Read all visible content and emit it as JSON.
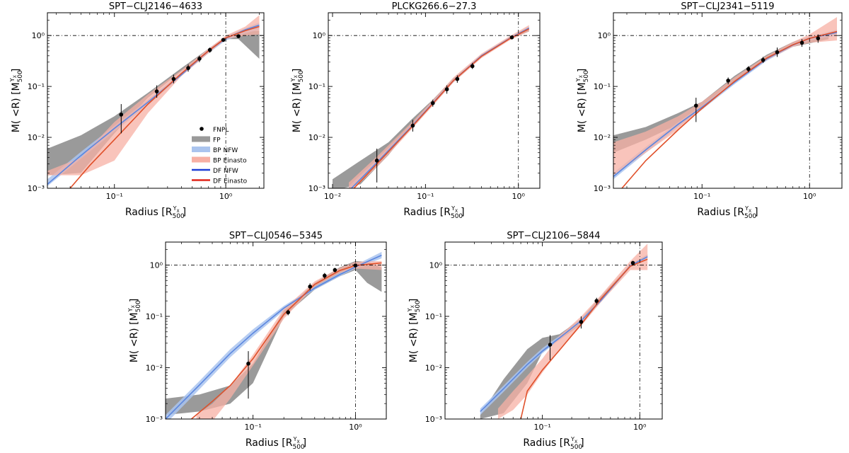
{
  "figure": {
    "ylabel_text": "M( <R)",
    "ylabel_unit": "[M",
    "xlabel_text": "Radius",
    "xlabel_unit": "[R",
    "unit_sub": "500",
    "unit_sup": "Y",
    "unit_sup_sub": "X",
    "legend": [
      {
        "label": "FNPL",
        "kind": "point",
        "color": "#000000"
      },
      {
        "label": "FP",
        "kind": "band",
        "color": "#9a9a9a"
      },
      {
        "label": "BP NFW",
        "kind": "band",
        "color": "#aac4ee"
      },
      {
        "label": "BP Einasto",
        "kind": "band",
        "color": "#f7b0a4"
      },
      {
        "label": "DF NFW",
        "kind": "line",
        "color": "#1f3fd6"
      },
      {
        "label": "DF Einasto",
        "kind": "line",
        "color": "#e0251a"
      }
    ],
    "colors": {
      "fp": "#9a9a9a",
      "bp_nfw": "#aac4ee",
      "bp_einasto": "#f7b0a4",
      "df_nfw": "#5a86e0",
      "df_einasto": "#e0502a",
      "points": "#000000"
    }
  },
  "chart_data": [
    {
      "type": "line",
      "title": "SPT−CLJ2146−4633",
      "xscale": "log",
      "yscale": "log",
      "xlim": [
        0.025,
        2.2
      ],
      "ylim": [
        0.001,
        2.8
      ],
      "xticks": [
        0.1,
        1.0
      ],
      "xtick_labels": [
        "10⁻¹",
        "10⁰"
      ],
      "yticks": [
        0.001,
        0.01,
        0.1,
        1.0
      ],
      "ytick_labels": [
        "10⁻³",
        "10⁻²",
        "10⁻¹",
        "10⁰"
      ],
      "reference_lines": {
        "x": 1.0,
        "y": 1.0
      },
      "legend_position": "lower right",
      "points": {
        "x": [
          0.115,
          0.24,
          0.34,
          0.46,
          0.58,
          0.72,
          0.95,
          1.3
        ],
        "y": [
          0.028,
          0.08,
          0.14,
          0.23,
          0.35,
          0.52,
          0.82,
          0.97
        ],
        "ylo": [
          0.012,
          0.06,
          0.115,
          0.195,
          0.3,
          0.46,
          0.76,
          0.92
        ],
        "yhi": [
          0.045,
          0.105,
          0.17,
          0.27,
          0.4,
          0.58,
          0.88,
          1.03
        ]
      },
      "fp_band": {
        "x": [
          0.025,
          0.05,
          0.1,
          0.2,
          0.4,
          0.7,
          1.0,
          1.3,
          2.0
        ],
        "lo": [
          0.0018,
          0.002,
          0.012,
          0.06,
          0.2,
          0.45,
          0.85,
          0.85,
          0.35
        ],
        "hi": [
          0.006,
          0.011,
          0.026,
          0.075,
          0.23,
          0.55,
          0.95,
          1.15,
          1.25
        ]
      },
      "bp_nfw": {
        "x": [
          0.025,
          0.05,
          0.1,
          0.2,
          0.4,
          0.7,
          1.0,
          1.5,
          2.0
        ],
        "lo": [
          0.0011,
          0.0038,
          0.013,
          0.043,
          0.16,
          0.45,
          0.8,
          1.1,
          1.3
        ],
        "hi": [
          0.0015,
          0.0052,
          0.017,
          0.055,
          0.19,
          0.55,
          0.95,
          1.4,
          1.8
        ]
      },
      "bp_einasto": {
        "x": [
          0.025,
          0.05,
          0.1,
          0.2,
          0.4,
          0.7,
          1.0,
          1.5,
          2.0
        ],
        "lo": [
          0.0018,
          0.0018,
          0.0035,
          0.03,
          0.16,
          0.45,
          0.85,
          1.0,
          1.05
        ],
        "hi": [
          0.0022,
          0.004,
          0.02,
          0.07,
          0.21,
          0.55,
          1.0,
          1.5,
          2.5
        ]
      },
      "df_nfw": {
        "x": [
          0.025,
          0.05,
          0.1,
          0.2,
          0.4,
          0.7,
          1.0,
          1.5,
          2.0
        ],
        "y": [
          0.0012,
          0.0044,
          0.015,
          0.049,
          0.17,
          0.5,
          0.88,
          1.3,
          1.6
        ]
      },
      "df_einasto": {
        "x": [
          0.04,
          0.06,
          0.1,
          0.2,
          0.4,
          0.7,
          1.0,
          1.5,
          2.0
        ],
        "y": [
          0.001,
          0.0028,
          0.009,
          0.045,
          0.18,
          0.5,
          0.9,
          1.25,
          1.5
        ]
      }
    },
    {
      "type": "line",
      "title": "PLCKG266.6−27.3",
      "xscale": "log",
      "yscale": "log",
      "xlim": [
        0.009,
        1.7
      ],
      "ylim": [
        0.001,
        2.8
      ],
      "xticks": [
        0.01,
        0.1,
        1.0
      ],
      "xtick_labels": [
        "10⁻²",
        "10⁻¹",
        "10⁰"
      ],
      "yticks": [
        0.001,
        0.01,
        0.1,
        1.0
      ],
      "ytick_labels": [
        "10⁻³",
        "10⁻²",
        "10⁻¹",
        "10⁰"
      ],
      "reference_lines": {
        "x": 1.0,
        "y": 1.0
      },
      "points": {
        "x": [
          0.03,
          0.073,
          0.12,
          0.17,
          0.22,
          0.32,
          0.85
        ],
        "y": [
          0.0035,
          0.017,
          0.047,
          0.088,
          0.14,
          0.25,
          0.92
        ],
        "ylo": [
          0.0013,
          0.013,
          0.04,
          0.072,
          0.118,
          0.22,
          0.87
        ],
        "yhi": [
          0.006,
          0.022,
          0.055,
          0.105,
          0.165,
          0.29,
          0.98
        ]
      },
      "fp_band": {
        "x": [
          0.01,
          0.02,
          0.04,
          0.07,
          0.12,
          0.2,
          0.4,
          0.8,
          1.3
        ],
        "lo": [
          0.0009,
          0.0012,
          0.0045,
          0.016,
          0.05,
          0.13,
          0.38,
          0.85,
          1.2
        ],
        "hi": [
          0.0015,
          0.0035,
          0.008,
          0.022,
          0.055,
          0.145,
          0.4,
          0.93,
          1.4
        ]
      },
      "bp_nfw": {
        "x": [
          0.015,
          0.03,
          0.07,
          0.12,
          0.2,
          0.4,
          0.8,
          1.3
        ],
        "lo": [
          0.0009,
          0.0028,
          0.0145,
          0.043,
          0.12,
          0.37,
          0.83,
          1.3
        ],
        "hi": [
          0.0011,
          0.0037,
          0.0175,
          0.051,
          0.14,
          0.42,
          0.92,
          1.5
        ]
      },
      "bp_einasto": {
        "x": [
          0.015,
          0.03,
          0.07,
          0.12,
          0.2,
          0.4,
          0.8,
          1.3
        ],
        "lo": [
          0.0008,
          0.0026,
          0.014,
          0.042,
          0.12,
          0.36,
          0.8,
          1.2
        ],
        "hi": [
          0.0013,
          0.0042,
          0.019,
          0.054,
          0.15,
          0.44,
          0.96,
          1.6
        ]
      },
      "df_nfw": {
        "x": [
          0.016,
          0.03,
          0.07,
          0.12,
          0.2,
          0.4,
          0.8,
          1.3
        ],
        "y": [
          0.001,
          0.0032,
          0.016,
          0.047,
          0.13,
          0.4,
          0.87,
          1.4
        ]
      },
      "df_einasto": {
        "x": [
          0.017,
          0.03,
          0.07,
          0.12,
          0.2,
          0.4,
          0.8,
          1.3
        ],
        "y": [
          0.001,
          0.003,
          0.0155,
          0.046,
          0.13,
          0.39,
          0.86,
          1.35
        ]
      }
    },
    {
      "type": "line",
      "title": "SPT−CLJ2341−5119",
      "xscale": "log",
      "yscale": "log",
      "xlim": [
        0.015,
        2.0
      ],
      "ylim": [
        0.001,
        2.8
      ],
      "xticks": [
        0.1,
        1.0
      ],
      "xtick_labels": [
        "10⁻¹",
        "10⁰"
      ],
      "yticks": [
        0.001,
        0.01,
        0.1,
        1.0
      ],
      "ytick_labels": [
        "10⁻³",
        "10⁻²",
        "10⁻¹",
        "10⁰"
      ],
      "reference_lines": {
        "x": 1.0,
        "y": 1.0
      },
      "points": {
        "x": [
          0.088,
          0.175,
          0.27,
          0.37,
          0.5,
          0.85,
          1.2
        ],
        "y": [
          0.042,
          0.13,
          0.22,
          0.33,
          0.47,
          0.72,
          0.88
        ],
        "ylo": [
          0.02,
          0.11,
          0.19,
          0.29,
          0.38,
          0.6,
          0.72
        ],
        "yhi": [
          0.06,
          0.15,
          0.25,
          0.38,
          0.58,
          0.85,
          1.05
        ]
      },
      "fp_band": {
        "x": [
          0.015,
          0.03,
          0.06,
          0.1,
          0.2,
          0.4,
          0.7,
          1.0,
          1.5
        ],
        "lo": [
          0.005,
          0.009,
          0.018,
          0.035,
          0.12,
          0.35,
          0.6,
          0.7,
          0.85
        ],
        "hi": [
          0.011,
          0.016,
          0.03,
          0.05,
          0.16,
          0.42,
          0.75,
          0.95,
          1.1
        ]
      },
      "bp_nfw": {
        "x": [
          0.015,
          0.03,
          0.06,
          0.1,
          0.2,
          0.4,
          0.7,
          1.0,
          1.8
        ],
        "lo": [
          0.0015,
          0.005,
          0.016,
          0.035,
          0.11,
          0.32,
          0.6,
          0.8,
          1.0
        ],
        "hi": [
          0.002,
          0.0065,
          0.02,
          0.042,
          0.13,
          0.37,
          0.7,
          0.95,
          1.3
        ]
      },
      "bp_einasto": {
        "x": [
          0.015,
          0.03,
          0.06,
          0.1,
          0.2,
          0.4,
          0.7,
          1.0,
          1.8
        ],
        "lo": [
          0.0018,
          0.005,
          0.014,
          0.035,
          0.12,
          0.33,
          0.6,
          0.72,
          0.8
        ],
        "hi": [
          0.008,
          0.013,
          0.026,
          0.05,
          0.15,
          0.4,
          0.75,
          1.05,
          2.3
        ]
      },
      "df_nfw": {
        "x": [
          0.015,
          0.03,
          0.06,
          0.1,
          0.2,
          0.4,
          0.7,
          1.0,
          1.8
        ],
        "y": [
          0.0017,
          0.0057,
          0.018,
          0.039,
          0.12,
          0.35,
          0.65,
          0.88,
          1.15
        ]
      },
      "df_einasto": {
        "x": [
          0.018,
          0.03,
          0.06,
          0.1,
          0.2,
          0.4,
          0.7,
          1.0,
          1.8
        ],
        "y": [
          0.001,
          0.0035,
          0.014,
          0.037,
          0.125,
          0.36,
          0.66,
          0.88,
          1.2
        ]
      }
    },
    {
      "type": "line",
      "title": "SPT−CLJ0546−5345",
      "xscale": "log",
      "yscale": "log",
      "xlim": [
        0.014,
        2.0
      ],
      "ylim": [
        0.001,
        2.8
      ],
      "xticks": [
        0.1,
        1.0
      ],
      "xtick_labels": [
        "10⁻¹",
        "10⁰"
      ],
      "yticks": [
        0.001,
        0.01,
        0.1,
        1.0
      ],
      "ytick_labels": [
        "10⁻³",
        "10⁻²",
        "10⁻¹",
        "10⁰"
      ],
      "reference_lines": {
        "x": 1.0,
        "y": 1.0
      },
      "points": {
        "x": [
          0.09,
          0.22,
          0.36,
          0.5,
          0.63,
          1.0
        ],
        "y": [
          0.012,
          0.12,
          0.38,
          0.62,
          0.8,
          0.98
        ],
        "ylo": [
          0.0025,
          0.105,
          0.32,
          0.54,
          0.72,
          0.9
        ],
        "yhi": [
          0.021,
          0.135,
          0.44,
          0.7,
          0.88,
          1.06
        ]
      },
      "fp_band": {
        "x": [
          0.014,
          0.03,
          0.06,
          0.1,
          0.2,
          0.4,
          0.7,
          1.0,
          1.3,
          1.8
        ],
        "lo": [
          0.0012,
          0.0014,
          0.002,
          0.005,
          0.1,
          0.33,
          0.6,
          0.8,
          0.45,
          0.3
        ],
        "hi": [
          0.0025,
          0.003,
          0.0045,
          0.012,
          0.13,
          0.45,
          0.9,
          1.2,
          1.15,
          0.9
        ]
      },
      "bp_nfw": {
        "x": [
          0.014,
          0.03,
          0.06,
          0.1,
          0.2,
          0.4,
          0.7,
          1.0,
          1.8
        ],
        "lo": [
          0.0008,
          0.0038,
          0.016,
          0.04,
          0.13,
          0.33,
          0.6,
          0.85,
          1.35
        ],
        "hi": [
          0.0012,
          0.0055,
          0.023,
          0.056,
          0.16,
          0.38,
          0.7,
          1.0,
          1.8
        ]
      },
      "bp_einasto": {
        "x": [
          0.028,
          0.04,
          0.06,
          0.1,
          0.2,
          0.4,
          0.7,
          1.0,
          1.8
        ],
        "lo": [
          0.0006,
          0.0009,
          0.0025,
          0.011,
          0.09,
          0.38,
          0.7,
          0.85,
          0.8
        ],
        "hi": [
          0.0012,
          0.002,
          0.0045,
          0.018,
          0.14,
          0.48,
          0.88,
          1.15,
          1.2
        ]
      },
      "df_nfw": {
        "x": [
          0.014,
          0.03,
          0.06,
          0.1,
          0.2,
          0.4,
          0.7,
          1.0,
          1.8
        ],
        "y": [
          0.001,
          0.0046,
          0.019,
          0.047,
          0.145,
          0.355,
          0.65,
          0.92,
          1.55
        ]
      },
      "df_einasto": {
        "x": [
          0.025,
          0.04,
          0.06,
          0.1,
          0.2,
          0.4,
          0.7,
          1.0,
          1.8
        ],
        "y": [
          0.001,
          0.0022,
          0.0045,
          0.015,
          0.11,
          0.42,
          0.78,
          0.98,
          1.1
        ]
      }
    },
    {
      "type": "line",
      "title": "SPT−CLJ2106−5844",
      "xscale": "log",
      "yscale": "log",
      "xlim": [
        0.01,
        1.7
      ],
      "ylim": [
        0.001,
        2.8
      ],
      "xticks": [
        0.1,
        1.0
      ],
      "xtick_labels": [
        "10⁻¹",
        "10⁰"
      ],
      "yticks": [
        0.001,
        0.01,
        0.1,
        1.0
      ],
      "ytick_labels": [
        "10⁻³",
        "10⁻²",
        "10⁻¹",
        "10⁰"
      ],
      "reference_lines": {
        "x": 1.0,
        "y": 1.0
      },
      "points": {
        "x": [
          0.12,
          0.25,
          0.36,
          0.85
        ],
        "y": [
          0.028,
          0.078,
          0.2,
          1.1
        ],
        "ylo": [
          0.014,
          0.058,
          0.17,
          1.0
        ],
        "yhi": [
          0.043,
          0.1,
          0.23,
          1.2
        ]
      },
      "fp_band": {
        "x": [
          0.023,
          0.04,
          0.07,
          0.1,
          0.15,
          0.25,
          0.4,
          0.8,
          1.2
        ],
        "lo": [
          0.001,
          0.0013,
          0.005,
          0.02,
          0.035,
          0.07,
          0.2,
          0.9,
          1.4
        ],
        "hi": [
          0.0012,
          0.006,
          0.023,
          0.038,
          0.045,
          0.09,
          0.25,
          1.0,
          1.6
        ]
      },
      "bp_nfw": {
        "x": [
          0.023,
          0.04,
          0.07,
          0.1,
          0.15,
          0.25,
          0.4,
          0.8,
          1.2
        ],
        "lo": [
          0.0012,
          0.0034,
          0.01,
          0.019,
          0.035,
          0.075,
          0.19,
          0.9,
          1.35
        ],
        "hi": [
          0.0016,
          0.0045,
          0.013,
          0.024,
          0.042,
          0.09,
          0.22,
          1.05,
          1.6
        ]
      },
      "bp_einasto": {
        "x": [
          0.035,
          0.05,
          0.07,
          0.1,
          0.15,
          0.25,
          0.4,
          0.8,
          1.2
        ],
        "lo": [
          0.001,
          0.0015,
          0.003,
          0.008,
          0.022,
          0.065,
          0.19,
          0.8,
          0.8
        ],
        "hi": [
          0.0016,
          0.0035,
          0.007,
          0.015,
          0.042,
          0.1,
          0.26,
          1.2,
          2.6
        ]
      },
      "df_nfw": {
        "x": [
          0.023,
          0.04,
          0.07,
          0.1,
          0.15,
          0.25,
          0.4,
          0.8,
          1.2
        ],
        "y": [
          0.0014,
          0.0039,
          0.0115,
          0.021,
          0.038,
          0.082,
          0.205,
          0.97,
          1.45
        ]
      },
      "df_einasto": {
        "x": [
          0.06,
          0.07,
          0.1,
          0.15,
          0.25,
          0.4,
          0.8,
          1.2
        ],
        "y": [
          0.001,
          0.0035,
          0.009,
          0.022,
          0.07,
          0.22,
          0.95,
          1.3
        ]
      }
    }
  ]
}
